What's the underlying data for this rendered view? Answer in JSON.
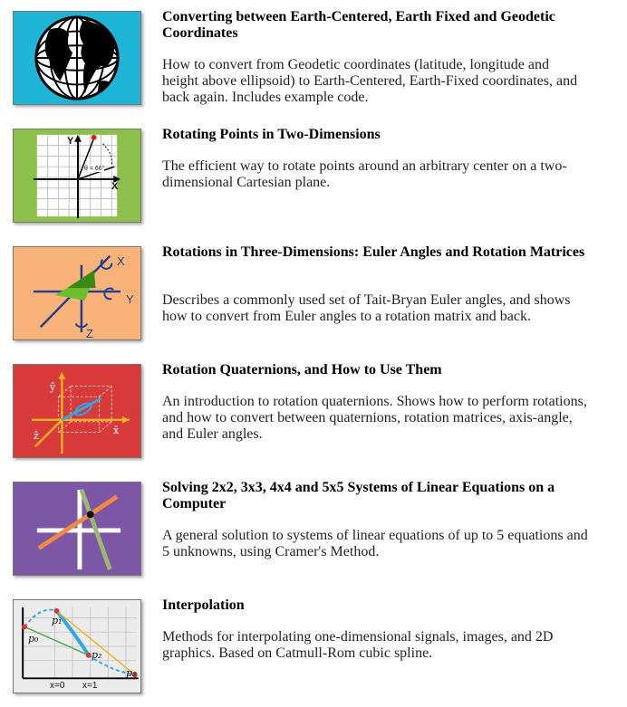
{
  "articles": [
    {
      "title": "Converting between Earth-Centered, Earth Fixed and Geodetic Coordinates",
      "description": "How to convert from Geodetic coordinates (latitude, longitude and height above ellipsoid) to Earth-Centered, Earth-Fixed coordinates, and back again. Includes example code.",
      "thumb_bg": "#1fb5d6",
      "icon": "globe-icon"
    },
    {
      "title": "Rotating Points in Two-Dimensions",
      "description": "The efficient way to rotate points around an arbitrary center on a two-dimensional Cartesian plane.",
      "thumb_bg": "#8cc04a",
      "icon": "2d-rotation-icon",
      "labels": {
        "y": "Y",
        "x": "X",
        "angle": "θ = 66°"
      }
    },
    {
      "title": "Rotations in Three-Dimensions: Euler Angles and Rotation Matrices",
      "description": "Describes a commonly used set of Tait-Bryan Euler angles, and shows how to convert from Euler angles to a rotation matrix and back.",
      "thumb_bg": "#f9b278",
      "icon": "euler-angles-icon",
      "labels": {
        "x": "X",
        "y": "Y",
        "z": "Z"
      }
    },
    {
      "title": "Rotation Quaternions, and How to Use Them",
      "description": "An introduction to rotation quaternions. Shows how to perform rotations, and how to convert between quaternions, rotation matrices, axis-angle, and Euler angles.",
      "thumb_bg": "#d83a3a",
      "icon": "quaternion-icon",
      "labels": {
        "x": "x̂",
        "y": "ŷ",
        "z": "ẑ"
      }
    },
    {
      "title": "Solving 2x2, 3x3, 4x4 and 5x5 Systems of Linear Equations on a Computer",
      "description": "A general solution to systems of linear equations of up to 5 equations and 5 unknowns, using Cramer's Method.",
      "thumb_bg": "#7e56a6",
      "icon": "linear-equations-icon"
    },
    {
      "title": "Interpolation",
      "description": "Methods for interpolating one-dimensional signals, images, and 2D graphics. Based on Catmull-Rom cubic spline.",
      "thumb_bg": "#ececec",
      "icon": "interpolation-icon",
      "labels": {
        "p0": "p₀",
        "p1": "p₁",
        "p2": "p₂",
        "p3": "p₃",
        "x0": "x=0",
        "x1": "x=1"
      }
    }
  ]
}
